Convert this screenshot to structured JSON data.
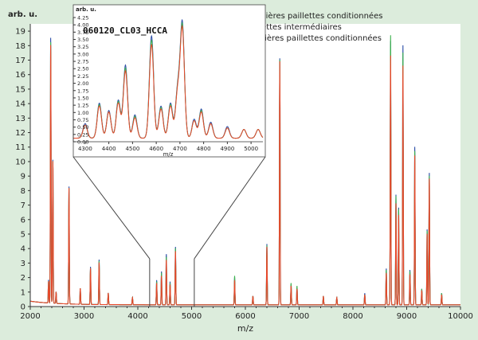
{
  "chart_data": {
    "type": "line",
    "ylabel": "arb. u.",
    "xlabel": "m/z",
    "xlim": [
      2000,
      10000
    ],
    "ylim": [
      0,
      19.5
    ],
    "x_ticks": [
      2000,
      3000,
      4000,
      5000,
      6000,
      7000,
      8000,
      9000,
      10000
    ],
    "y_ticks": [
      0,
      1,
      2,
      3,
      4,
      5,
      6,
      7,
      8,
      9,
      10,
      11,
      12,
      13,
      14,
      15,
      16,
      17,
      18,
      19
    ],
    "legend_position": "top-right",
    "series": [
      {
        "name": "Premières paillettes conditionnées",
        "color": "#e8472a",
        "peaks": [
          [
            2340,
            1.5
          ],
          [
            2380,
            17.8
          ],
          [
            2420,
            9.8
          ],
          [
            2480,
            0.8
          ],
          [
            2720,
            8.0
          ],
          [
            2930,
            1.1
          ],
          [
            3120,
            2.5
          ],
          [
            3280,
            2.9
          ],
          [
            3450,
            0.8
          ],
          [
            3900,
            0.5
          ],
          [
            4350,
            1.5
          ],
          [
            4440,
            2.0
          ],
          [
            4530,
            3.1
          ],
          [
            4600,
            1.4
          ],
          [
            4700,
            3.7
          ],
          [
            5800,
            1.7
          ],
          [
            6140,
            0.6
          ],
          [
            6400,
            4.0
          ],
          [
            6640,
            16.8
          ],
          [
            6850,
            1.3
          ],
          [
            6960,
            1.1
          ],
          [
            7450,
            0.6
          ],
          [
            7700,
            0.5
          ],
          [
            8220,
            0.7
          ],
          [
            8620,
            2.2
          ],
          [
            8700,
            17.2
          ],
          [
            8800,
            7.0
          ],
          [
            8850,
            6.2
          ],
          [
            8930,
            16.5
          ],
          [
            9060,
            2.1
          ],
          [
            9150,
            10.3
          ],
          [
            9280,
            1.0
          ],
          [
            9380,
            4.9
          ],
          [
            9420,
            8.7
          ],
          [
            9650,
            0.7
          ]
        ]
      },
      {
        "name": "Paillettes intermédiaires",
        "color": "#3fb34f",
        "peaks": [
          [
            2340,
            1.5
          ],
          [
            2380,
            18.0
          ],
          [
            2420,
            9.8
          ],
          [
            2480,
            0.8
          ],
          [
            2720,
            8.0
          ],
          [
            2930,
            1.1
          ],
          [
            3120,
            2.5
          ],
          [
            3280,
            3.0
          ],
          [
            3450,
            0.8
          ],
          [
            3900,
            0.5
          ],
          [
            4350,
            1.6
          ],
          [
            4440,
            2.2
          ],
          [
            4530,
            3.3
          ],
          [
            4600,
            1.5
          ],
          [
            4700,
            3.9
          ],
          [
            5800,
            2.0
          ],
          [
            6140,
            0.6
          ],
          [
            6400,
            4.1
          ],
          [
            6640,
            16.9
          ],
          [
            6850,
            1.5
          ],
          [
            6960,
            1.3
          ],
          [
            7450,
            0.6
          ],
          [
            7700,
            0.5
          ],
          [
            8220,
            0.7
          ],
          [
            8620,
            2.4
          ],
          [
            8700,
            18.6
          ],
          [
            8800,
            7.5
          ],
          [
            8850,
            6.6
          ],
          [
            8930,
            17.4
          ],
          [
            9060,
            2.3
          ],
          [
            9150,
            10.6
          ],
          [
            9280,
            1.1
          ],
          [
            9380,
            5.1
          ],
          [
            9420,
            8.9
          ],
          [
            9650,
            0.8
          ]
        ]
      },
      {
        "name": "Dernières paillettes conditionnées",
        "color": "#2d4fa8",
        "peaks": [
          [
            2340,
            1.6
          ],
          [
            2380,
            18.3
          ],
          [
            2420,
            9.9
          ],
          [
            2480,
            0.8
          ],
          [
            2720,
            8.1
          ],
          [
            2930,
            1.1
          ],
          [
            3120,
            2.6
          ],
          [
            3280,
            3.1
          ],
          [
            3450,
            0.8
          ],
          [
            3900,
            0.5
          ],
          [
            4350,
            1.7
          ],
          [
            4440,
            2.3
          ],
          [
            4530,
            3.5
          ],
          [
            4600,
            1.6
          ],
          [
            4700,
            4.0
          ],
          [
            5800,
            1.9
          ],
          [
            6140,
            0.6
          ],
          [
            6400,
            4.2
          ],
          [
            6640,
            17.0
          ],
          [
            6850,
            1.4
          ],
          [
            6960,
            1.2
          ],
          [
            7450,
            0.6
          ],
          [
            7700,
            0.5
          ],
          [
            8220,
            0.8
          ],
          [
            8620,
            2.5
          ],
          [
            8700,
            18.2
          ],
          [
            8800,
            7.6
          ],
          [
            8850,
            6.7
          ],
          [
            8930,
            17.9
          ],
          [
            9060,
            2.4
          ],
          [
            9150,
            10.9
          ],
          [
            9280,
            1.1
          ],
          [
            9380,
            5.2
          ],
          [
            9420,
            9.1
          ],
          [
            9650,
            0.8
          ]
        ]
      }
    ],
    "inset": {
      "title": "060120_CL03_HCCA",
      "ylabel": "arb. u.",
      "xlabel": "m/z",
      "xlim": [
        4250,
        5050
      ],
      "ylim": [
        0,
        4.25
      ],
      "x_ticks": [
        4300,
        4400,
        4500,
        4600,
        4700,
        4800,
        4900,
        5000
      ],
      "y_ticks": [
        0.0,
        0.25,
        0.5,
        0.75,
        1.0,
        1.25,
        1.5,
        1.75,
        2.0,
        2.25,
        2.5,
        2.75,
        3.0,
        3.25,
        3.5,
        3.75,
        4.0,
        4.25
      ],
      "y_tick_labels": [
        "0.00",
        "0.25",
        "0.50",
        "0.75",
        "1.00",
        "1.25",
        "1.50",
        "1.75",
        "2.00",
        "2.25",
        "2.50",
        "2.75",
        "3.00",
        "3.25",
        "3.50",
        "3.75",
        "4.00",
        "4.25"
      ],
      "zoom_range": [
        4220,
        5050
      ],
      "series": [
        {
          "name": "Premières paillettes conditionnées",
          "color": "#e8472a",
          "peaks": [
            [
              4300,
              0.45
            ],
            [
              4360,
              1.1
            ],
            [
              4400,
              0.9
            ],
            [
              4440,
              1.2
            ],
            [
              4470,
              2.3
            ],
            [
              4510,
              0.7
            ],
            [
              4580,
              3.2
            ],
            [
              4620,
              1.0
            ],
            [
              4660,
              1.1
            ],
            [
              4690,
              1.5
            ],
            [
              4710,
              3.7
            ],
            [
              4760,
              0.6
            ],
            [
              4790,
              0.9
            ],
            [
              4830,
              0.5
            ],
            [
              4900,
              0.35
            ],
            [
              4970,
              0.3
            ],
            [
              5030,
              0.3
            ]
          ]
        },
        {
          "name": "Paillettes intermédiaires",
          "color": "#3fb34f",
          "peaks": [
            [
              4300,
              0.45
            ],
            [
              4360,
              1.15
            ],
            [
              4400,
              0.9
            ],
            [
              4440,
              1.25
            ],
            [
              4470,
              2.4
            ],
            [
              4510,
              0.75
            ],
            [
              4580,
              3.35
            ],
            [
              4620,
              1.05
            ],
            [
              4660,
              1.15
            ],
            [
              4690,
              1.55
            ],
            [
              4710,
              3.8
            ],
            [
              4760,
              0.6
            ],
            [
              4790,
              0.95
            ],
            [
              4830,
              0.5
            ],
            [
              4900,
              0.35
            ],
            [
              4970,
              0.3
            ],
            [
              5030,
              0.3
            ]
          ]
        },
        {
          "name": "Dernières paillettes conditionnées",
          "color": "#2d4fa8",
          "peaks": [
            [
              4300,
              0.5
            ],
            [
              4360,
              1.2
            ],
            [
              4400,
              0.95
            ],
            [
              4440,
              1.3
            ],
            [
              4470,
              2.5
            ],
            [
              4510,
              0.8
            ],
            [
              4580,
              3.5
            ],
            [
              4620,
              1.1
            ],
            [
              4660,
              1.2
            ],
            [
              4690,
              1.6
            ],
            [
              4710,
              3.9
            ],
            [
              4760,
              0.65
            ],
            [
              4790,
              1.0
            ],
            [
              4830,
              0.55
            ],
            [
              4900,
              0.4
            ],
            [
              4970,
              0.3
            ],
            [
              5030,
              0.3
            ]
          ]
        }
      ]
    }
  }
}
